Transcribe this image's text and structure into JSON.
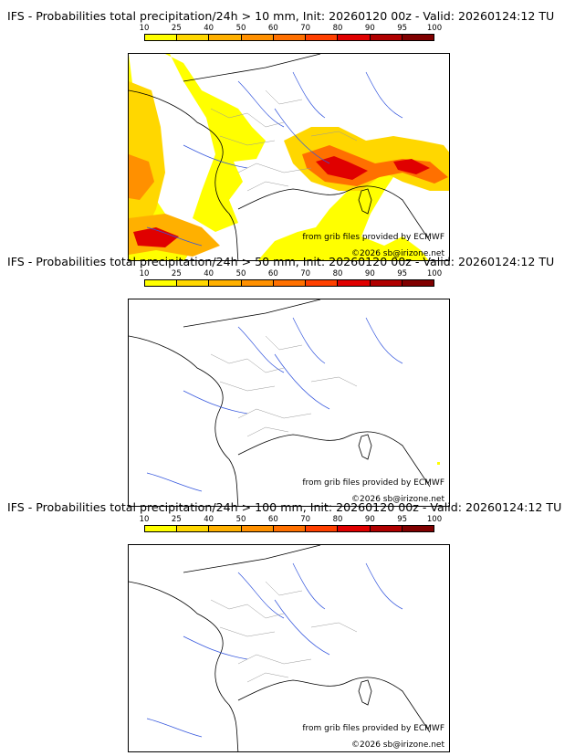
{
  "panels": [
    {
      "title": "IFS - Probabilities total precipitation/24h > 10 mm, Init: 20260120 00z - Valid: 20260124:12 TU",
      "threshold_mm": 10
    },
    {
      "title": "IFS - Probabilities total precipitation/24h > 50 mm, Init: 20260120 00z - Valid: 20260124:12 TU",
      "threshold_mm": 50
    },
    {
      "title": "IFS - Probabilities total precipitation/24h > 100 mm, Init: 20260120 00z - Valid: 20260124:12 TU",
      "threshold_mm": 100
    }
  ],
  "scale": {
    "ticks": [
      "10",
      "25",
      "40",
      "50",
      "60",
      "70",
      "80",
      "90",
      "95",
      "100"
    ],
    "colors": [
      "#ffff00",
      "#ffd700",
      "#ffb000",
      "#ff9000",
      "#ff7000",
      "#ff4000",
      "#e00000",
      "#b00000",
      "#800000"
    ]
  },
  "credits": {
    "source": "from grib files provided by ECMWF",
    "copyright": "©2026 sb@irizone.net"
  }
}
